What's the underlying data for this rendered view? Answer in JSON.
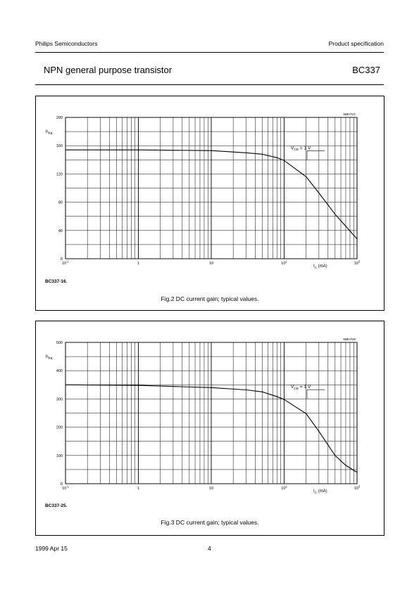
{
  "header": {
    "company": "Philips Semiconductors",
    "doc_type": "Product specification",
    "title": "NPN general purpose transistor",
    "part": "BC337"
  },
  "footer": {
    "date": "1999 Apr 15",
    "page": "4"
  },
  "figures": [
    {
      "code": "MBH721",
      "variant": "BC337-16.",
      "caption": "Fig.2  DC current gain; typical values.",
      "curve_label": "V_CE = 1 V"
    },
    {
      "code": "MBH720",
      "variant": "BC337-25.",
      "caption": "Fig.3  DC current gain; typical values.",
      "curve_label": "V_CE = 1 V"
    }
  ],
  "chart_data": [
    {
      "type": "line",
      "code": "MBH721",
      "xlabel": "I_C (mA)",
      "ylabel": "h_FE",
      "xscale": "log",
      "xlim": [
        0.1,
        1000
      ],
      "ylim": [
        0,
        200
      ],
      "y_ticks": [
        0,
        40,
        80,
        120,
        160,
        200
      ],
      "x_tick_labels": [
        "10^-1",
        "1",
        "10",
        "10^2",
        "10^3"
      ],
      "grid": true,
      "series": [
        {
          "name": "V_CE = 1 V",
          "x": [
            0.1,
            1,
            10,
            30,
            50,
            80,
            100,
            200,
            300,
            500,
            700,
            1000
          ],
          "y": [
            154,
            154,
            153,
            150,
            148,
            143,
            139,
            116,
            93,
            63,
            46,
            28
          ]
        }
      ]
    },
    {
      "type": "line",
      "code": "MBH720",
      "xlabel": "I_C (mA)",
      "ylabel": "h_FE",
      "xscale": "log",
      "xlim": [
        0.1,
        1000
      ],
      "ylim": [
        0,
        500
      ],
      "y_ticks": [
        0,
        100,
        200,
        300,
        400,
        500
      ],
      "x_tick_labels": [
        "10^-1",
        "1",
        "10",
        "10^2",
        "10^3"
      ],
      "grid": true,
      "series": [
        {
          "name": "V_CE = 1 V",
          "x": [
            0.1,
            1,
            10,
            30,
            50,
            80,
            100,
            200,
            300,
            500,
            700,
            1000
          ],
          "y": [
            350,
            348,
            340,
            332,
            325,
            308,
            298,
            248,
            185,
            100,
            65,
            40
          ]
        }
      ]
    }
  ]
}
